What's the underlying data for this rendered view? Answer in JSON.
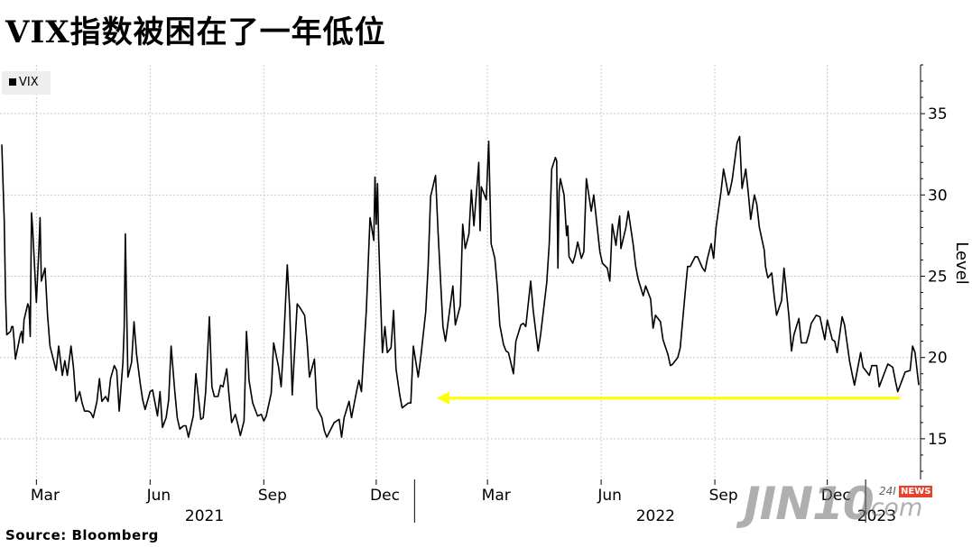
{
  "title": "VIX指数被困在了一年低位",
  "source": "Source:  Bloomberg",
  "watermark": {
    "brand": "JIN10",
    "suffix": ".com",
    "tag_num": "24I",
    "tag_news": "NEWS"
  },
  "colors": {
    "line": "#000000",
    "arrow": "#ffff00",
    "grid": "#c8c8c8",
    "legend_bg": "#eeeeee"
  },
  "chart_data": {
    "type": "line",
    "series": [
      {
        "name": "VIX",
        "x": [
          "2021-02-01",
          "2021-02-03",
          "2021-02-04",
          "2021-02-05",
          "2021-02-08",
          "2021-02-09",
          "2021-02-10",
          "2021-02-11",
          "2021-02-12",
          "2021-02-16",
          "2021-02-17",
          "2021-02-18",
          "2021-02-19",
          "2021-02-22",
          "2021-02-23",
          "2021-02-24",
          "2021-02-25",
          "2021-02-26",
          "2021-03-01",
          "2021-03-03",
          "2021-03-04",
          "2021-03-05",
          "2021-03-08",
          "2021-03-10",
          "2021-03-12",
          "2021-03-15",
          "2021-03-17",
          "2021-03-19",
          "2021-03-22",
          "2021-03-24",
          "2021-03-26",
          "2021-03-29",
          "2021-03-31",
          "2021-04-02",
          "2021-04-05",
          "2021-04-07",
          "2021-04-09",
          "2021-04-12",
          "2021-04-14",
          "2021-04-16",
          "2021-04-19",
          "2021-04-21",
          "2021-04-23",
          "2021-04-26",
          "2021-04-28",
          "2021-04-30",
          "2021-05-03",
          "2021-05-05",
          "2021-05-07",
          "2021-05-10",
          "2021-05-11",
          "2021-05-12",
          "2021-05-13",
          "2021-05-14",
          "2021-05-17",
          "2021-05-19",
          "2021-05-21",
          "2021-05-24",
          "2021-05-26",
          "2021-05-28",
          "2021-06-01",
          "2021-06-03",
          "2021-06-07",
          "2021-06-09",
          "2021-06-11",
          "2021-06-14",
          "2021-06-16",
          "2021-06-18",
          "2021-06-21",
          "2021-06-23",
          "2021-06-25",
          "2021-06-28",
          "2021-06-30",
          "2021-07-02",
          "2021-07-06",
          "2021-07-08",
          "2021-07-12",
          "2021-07-14",
          "2021-07-16",
          "2021-07-19",
          "2021-07-21",
          "2021-07-23",
          "2021-07-26",
          "2021-07-28",
          "2021-07-30",
          "2021-08-02",
          "2021-08-04",
          "2021-08-06",
          "2021-08-09",
          "2021-08-11",
          "2021-08-13",
          "2021-08-16",
          "2021-08-18",
          "2021-08-19",
          "2021-08-20",
          "2021-08-23",
          "2021-08-25",
          "2021-08-27",
          "2021-08-30",
          "2021-09-01",
          "2021-09-03",
          "2021-09-07",
          "2021-09-09",
          "2021-09-13",
          "2021-09-15",
          "2021-09-17",
          "2021-09-20",
          "2021-09-22",
          "2021-09-24",
          "2021-09-28",
          "2021-09-30",
          "2021-10-04",
          "2021-10-06",
          "2021-10-08",
          "2021-10-12",
          "2021-10-14",
          "2021-10-18",
          "2021-10-20",
          "2021-10-22",
          "2021-10-26",
          "2021-10-28",
          "2021-11-01",
          "2021-11-03",
          "2021-11-05",
          "2021-11-09",
          "2021-11-11",
          "2021-11-15",
          "2021-11-17",
          "2021-11-19",
          "2021-11-23",
          "2021-11-26",
          "2021-11-29",
          "2021-11-30",
          "2021-12-01",
          "2021-12-02",
          "2021-12-03",
          "2021-12-06",
          "2021-12-08",
          "2021-12-10",
          "2021-12-13",
          "2021-12-15",
          "2021-12-17",
          "2021-12-20",
          "2021-12-22",
          "2021-12-27",
          "2021-12-29",
          "2021-12-31",
          "2022-01-04",
          "2022-01-06",
          "2022-01-10",
          "2022-01-12",
          "2022-01-14",
          "2022-01-18",
          "2022-01-20",
          "2022-01-24",
          "2022-01-26",
          "2022-01-28",
          "2022-02-01",
          "2022-02-03",
          "2022-02-07",
          "2022-02-09",
          "2022-02-11",
          "2022-02-14",
          "2022-02-16",
          "2022-02-18",
          "2022-02-22",
          "2022-02-23",
          "2022-02-24",
          "2022-02-28",
          "2022-03-02",
          "2022-03-04",
          "2022-03-07",
          "2022-03-09",
          "2022-03-11",
          "2022-03-14",
          "2022-03-16",
          "2022-03-18",
          "2022-03-22",
          "2022-03-24",
          "2022-03-28",
          "2022-03-30",
          "2022-04-01",
          "2022-04-05",
          "2022-04-07",
          "2022-04-11",
          "2022-04-13",
          "2022-04-18",
          "2022-04-20",
          "2022-04-22",
          "2022-04-25",
          "2022-04-26",
          "2022-04-27",
          "2022-04-28",
          "2022-04-29",
          "2022-05-02",
          "2022-05-04",
          "2022-05-05",
          "2022-05-06",
          "2022-05-09",
          "2022-05-11",
          "2022-05-13",
          "2022-05-16",
          "2022-05-18",
          "2022-05-20",
          "2022-05-24",
          "2022-05-26",
          "2022-05-31",
          "2022-06-02",
          "2022-06-06",
          "2022-06-08",
          "2022-06-10",
          "2022-06-13",
          "2022-06-14",
          "2022-06-16",
          "2022-06-17",
          "2022-06-21",
          "2022-06-23",
          "2022-06-27",
          "2022-06-29",
          "2022-07-01",
          "2022-07-05",
          "2022-07-07",
          "2022-07-11",
          "2022-07-13",
          "2022-07-15",
          "2022-07-19",
          "2022-07-21",
          "2022-07-25",
          "2022-07-27",
          "2022-07-29",
          "2022-08-02",
          "2022-08-04",
          "2022-08-08",
          "2022-08-10",
          "2022-08-12",
          "2022-08-16",
          "2022-08-18",
          "2022-08-22",
          "2022-08-24",
          "2022-08-26",
          "2022-08-29",
          "2022-08-31",
          "2022-09-02",
          "2022-09-06",
          "2022-09-08",
          "2022-09-12",
          "2022-09-13",
          "2022-09-15",
          "2022-09-19",
          "2022-09-21",
          "2022-09-23",
          "2022-09-26",
          "2022-09-28",
          "2022-09-30",
          "2022-10-03",
          "2022-10-05",
          "2022-10-07",
          "2022-10-11",
          "2022-10-12",
          "2022-10-13",
          "2022-10-14",
          "2022-10-17",
          "2022-10-19",
          "2022-10-21",
          "2022-10-25",
          "2022-10-27",
          "2022-10-31",
          "2022-11-02",
          "2022-11-04",
          "2022-11-08",
          "2022-11-10",
          "2022-11-14",
          "2022-11-16",
          "2022-11-18",
          "2022-11-22",
          "2022-11-25",
          "2022-11-29",
          "2022-12-01",
          "2022-12-05",
          "2022-12-07",
          "2022-12-09",
          "2022-12-13",
          "2022-12-15",
          "2022-12-19",
          "2022-12-21",
          "2022-12-23",
          "2022-12-28",
          "2022-12-30",
          "2023-01-04",
          "2023-01-06",
          "2023-01-10",
          "2023-01-12",
          "2023-01-17",
          "2023-01-19",
          "2023-01-23",
          "2023-01-25",
          "2023-01-27",
          "2023-01-31",
          "2023-02-02",
          "2023-02-06",
          "2023-02-08",
          "2023-02-10",
          "2023-02-13"
        ],
        "y": [
          33.1,
          28.4,
          23.9,
          21.4,
          21.6,
          21.9,
          21.9,
          21.0,
          19.9,
          21.4,
          21.6,
          20.9,
          22.3,
          23.3,
          23.1,
          21.3,
          28.9,
          27.9,
          23.4,
          26.7,
          28.6,
          24.7,
          25.5,
          22.6,
          20.7,
          19.8,
          19.2,
          20.7,
          18.9,
          19.8,
          18.9,
          20.7,
          19.4,
          17.3,
          17.9,
          17.2,
          16.7,
          16.7,
          16.6,
          16.3,
          17.3,
          18.7,
          17.3,
          17.6,
          17.3,
          18.7,
          19.5,
          19.2,
          16.7,
          19.7,
          21.8,
          27.6,
          23.1,
          18.8,
          19.7,
          22.2,
          20.2,
          18.4,
          17.4,
          16.8,
          17.9,
          18.0,
          16.4,
          17.9,
          15.7,
          16.3,
          17.4,
          20.7,
          17.9,
          16.3,
          15.6,
          15.8,
          15.8,
          15.1,
          16.4,
          19.0,
          16.2,
          16.3,
          17.9,
          22.5,
          18.2,
          17.6,
          17.6,
          18.3,
          18.2,
          19.3,
          17.6,
          16.0,
          16.5,
          15.9,
          15.2,
          16.1,
          21.6,
          20.3,
          18.6,
          17.2,
          16.8,
          16.4,
          16.5,
          16.1,
          16.4,
          17.8,
          20.9,
          19.4,
          18.2,
          20.8,
          25.7,
          23.0,
          17.7,
          23.3,
          23.1,
          22.6,
          21.0,
          18.8,
          19.9,
          16.9,
          16.3,
          15.5,
          15.1,
          15.7,
          16.0,
          16.2,
          15.1,
          16.3,
          17.3,
          16.3,
          17.9,
          18.6,
          17.9,
          22.9,
          28.6,
          27.2,
          31.1,
          28.2,
          30.7,
          27.2,
          20.3,
          21.9,
          20.3,
          20.6,
          22.9,
          19.3,
          17.7,
          16.9,
          17.2,
          17.2,
          20.7,
          18.8,
          20.0,
          22.8,
          25.6,
          29.9,
          31.2,
          27.7,
          21.9,
          21.0,
          22.1,
          24.4,
          22.0,
          23.2,
          28.2,
          26.7,
          27.6,
          30.3,
          28.1,
          32.0,
          27.8,
          30.5,
          29.7,
          33.3,
          27.0,
          26.1,
          24.3,
          22.0,
          20.8,
          20.4,
          20.3,
          19.0,
          21.0,
          22.0,
          22.1,
          21.9,
          24.7,
          22.9,
          20.4,
          21.4,
          24.6,
          27.0,
          31.6,
          32.3,
          32.1,
          25.5,
          30.2,
          31.0,
          30.0,
          27.5,
          28.1,
          26.2,
          25.8,
          26.3,
          27.1,
          26.1,
          26.5,
          31.0,
          29.0,
          30.0,
          26.5,
          25.8,
          25.5,
          24.7,
          28.2,
          26.9,
          27.6,
          28.7,
          26.7,
          28.0,
          29.0,
          26.9,
          25.6,
          24.8,
          23.8,
          24.4,
          23.6,
          21.8,
          22.6,
          22.2,
          21.1,
          20.2,
          19.5,
          19.6,
          20.0,
          20.6,
          24.0,
          25.6,
          25.6,
          26.2,
          26.2,
          25.5,
          25.3,
          26.1,
          27.0,
          26.1,
          28.0,
          30.2,
          31.6,
          30.0,
          30.2,
          30.9,
          33.2,
          33.6,
          30.4,
          31.6,
          30.2,
          28.5,
          30.0,
          29.4,
          28.0,
          26.6,
          25.6,
          25.2,
          24.9,
          25.2,
          23.8,
          22.6,
          23.5,
          25.5,
          22.5,
          20.4,
          21.4,
          22.4,
          20.9,
          20.9,
          21.4,
          22.1,
          22.6,
          22.5,
          21.1,
          22.3,
          21.1,
          21.0,
          20.3,
          22.5,
          22.0,
          19.8,
          19.0,
          18.3,
          20.3,
          19.4,
          18.9,
          19.5,
          19.5,
          18.2,
          19.2,
          19.6,
          19.4,
          18.6,
          17.9,
          18.7,
          19.1,
          19.2,
          20.7,
          20.3,
          18.3
        ]
      }
    ],
    "x_ticks": [
      "Mar",
      "Jun",
      "Sep",
      "Dec",
      "Mar",
      "Jun",
      "Sep",
      "Dec"
    ],
    "x_years": [
      "2021",
      "2022",
      "2023"
    ],
    "y_ticks": [
      15,
      20,
      25,
      30,
      35
    ],
    "ylabel": "Level",
    "ylim": [
      12.5,
      38
    ],
    "y_axis_side": "right",
    "grid": true,
    "legend": "top-left",
    "annotation": {
      "type": "arrow",
      "direction": "left",
      "x_from": "2023-01-29",
      "x_to": "2022-01-19",
      "y": 17.5,
      "color": "yellow"
    }
  }
}
